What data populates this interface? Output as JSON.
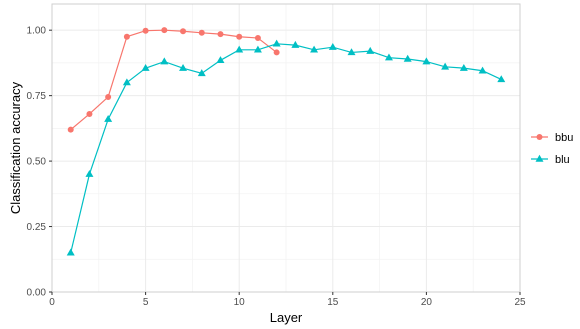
{
  "chart_data": {
    "type": "line",
    "title": "",
    "xlabel": "Layer",
    "ylabel": "Classification accuracy",
    "xlim": [
      0,
      25
    ],
    "ylim": [
      0,
      1.1
    ],
    "x_ticks": [
      0,
      5,
      10,
      15,
      20,
      25
    ],
    "x_tick_labels": [
      "0",
      "5",
      "10",
      "15",
      "20",
      "25"
    ],
    "y_ticks": [
      0,
      0.25,
      0.5,
      0.75,
      1.0
    ],
    "y_tick_labels": [
      "0.00",
      "0.25",
      "0.50",
      "0.75",
      "1.00"
    ],
    "grid": true,
    "legend_position": "right",
    "series": [
      {
        "name": "bbu",
        "color": "#F8766D",
        "marker": "circle",
        "x": [
          1,
          2,
          3,
          4,
          5,
          6,
          7,
          8,
          9,
          10,
          11,
          12
        ],
        "y": [
          0.62,
          0.68,
          0.745,
          0.975,
          0.998,
          1.0,
          0.996,
          0.99,
          0.985,
          0.975,
          0.97,
          0.915
        ]
      },
      {
        "name": "blu",
        "color": "#00BFC4",
        "marker": "triangle",
        "x": [
          1,
          2,
          3,
          4,
          5,
          6,
          7,
          8,
          9,
          10,
          11,
          12,
          13,
          14,
          15,
          16,
          17,
          18,
          19,
          20,
          21,
          22,
          23,
          24
        ],
        "y": [
          0.15,
          0.45,
          0.66,
          0.8,
          0.855,
          0.88,
          0.855,
          0.835,
          0.885,
          0.925,
          0.925,
          0.948,
          0.943,
          0.925,
          0.935,
          0.915,
          0.92,
          0.895,
          0.89,
          0.88,
          0.86,
          0.855,
          0.845,
          0.812
        ]
      }
    ]
  }
}
